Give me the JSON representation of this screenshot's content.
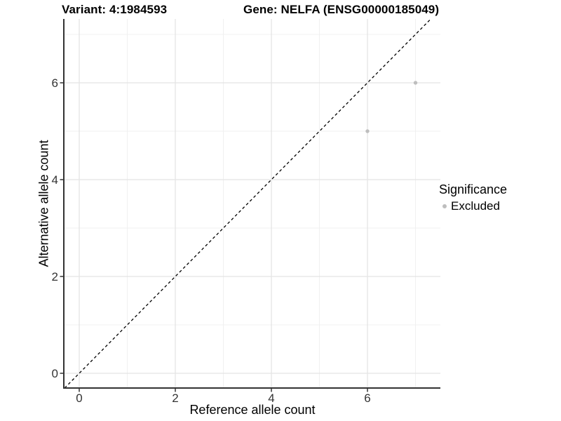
{
  "title": {
    "variant": "Variant: 4:1984593",
    "gene": "Gene: NELFA (ENSG00000185049)"
  },
  "axes": {
    "x": {
      "label": "Reference allele count",
      "ticks": [
        0,
        2,
        4,
        6
      ],
      "minor": [
        1,
        3,
        5,
        7
      ]
    },
    "y": {
      "label": "Alternative allele count",
      "ticks": [
        0,
        2,
        4,
        6
      ],
      "minor": [
        1,
        3,
        5,
        7
      ]
    }
  },
  "legend": {
    "title": "Significance",
    "position": "right",
    "items": [
      {
        "label": "Excluded",
        "color": "#bebebe"
      }
    ]
  },
  "colors": {
    "point": "#bebebe",
    "grid_major": "#e4e4e4",
    "grid_minor": "#f0f0f0",
    "axis_line": "#333333",
    "tick_text": "#333333",
    "abline": "#000000",
    "background": "#ffffff"
  },
  "chart_data": {
    "type": "scatter",
    "title": "Variant: 4:1984593   Gene: NELFA (ENSG00000185049)",
    "xlabel": "Reference allele count",
    "ylabel": "Alternative allele count",
    "xlim": [
      -0.32,
      7.52
    ],
    "ylim": [
      -0.3,
      7.32
    ],
    "grid": "on",
    "legend_position": "right",
    "abline": {
      "slope": 1,
      "intercept": 0,
      "linestyle": "dashed",
      "color": "#000000"
    },
    "series": [
      {
        "name": "Excluded",
        "color": "#bebebe",
        "points": [
          {
            "x": 6,
            "y": 5
          },
          {
            "x": 7,
            "y": 6
          }
        ]
      }
    ]
  }
}
